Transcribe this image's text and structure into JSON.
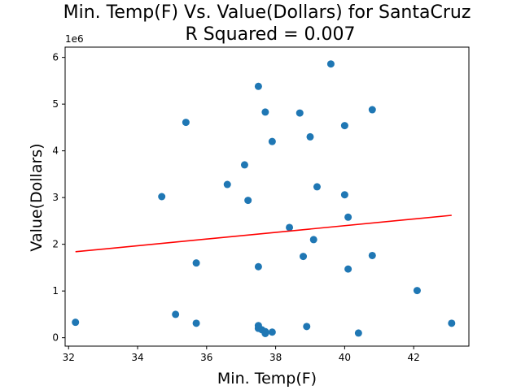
{
  "chart_data": {
    "type": "scatter",
    "title_line1": "Min. Temp(F) Vs. Value(Dollars) for SantaCruz",
    "title_line2": "R Squared =  0.007",
    "xlabel": "Min. Temp(F)",
    "ylabel": "Value(Dollars)",
    "y_offset_label": "1e6",
    "xlim": [
      31.9,
      43.6
    ],
    "ylim": [
      -0.18,
      6.22
    ],
    "x_ticks": [
      32,
      34,
      36,
      38,
      40,
      42
    ],
    "y_ticks": [
      0,
      1,
      2,
      3,
      4,
      5,
      6
    ],
    "colors": {
      "points": "#1f77b4",
      "trend": "#ff0000",
      "axes": "#000000"
    },
    "points": [
      {
        "x": 32.2,
        "y": 0.33
      },
      {
        "x": 34.7,
        "y": 3.02
      },
      {
        "x": 35.1,
        "y": 0.5
      },
      {
        "x": 35.4,
        "y": 4.61
      },
      {
        "x": 35.7,
        "y": 1.6
      },
      {
        "x": 35.7,
        "y": 0.31
      },
      {
        "x": 36.6,
        "y": 3.28
      },
      {
        "x": 37.1,
        "y": 3.7
      },
      {
        "x": 37.2,
        "y": 2.94
      },
      {
        "x": 37.5,
        "y": 5.38
      },
      {
        "x": 37.5,
        "y": 1.52
      },
      {
        "x": 37.5,
        "y": 0.26
      },
      {
        "x": 37.5,
        "y": 0.2
      },
      {
        "x": 37.6,
        "y": 0.17
      },
      {
        "x": 37.7,
        "y": 4.83
      },
      {
        "x": 37.7,
        "y": 0.13
      },
      {
        "x": 37.7,
        "y": 0.09
      },
      {
        "x": 37.9,
        "y": 4.2
      },
      {
        "x": 37.9,
        "y": 0.12
      },
      {
        "x": 38.4,
        "y": 2.36
      },
      {
        "x": 38.7,
        "y": 4.81
      },
      {
        "x": 38.8,
        "y": 1.74
      },
      {
        "x": 38.9,
        "y": 0.24
      },
      {
        "x": 39.0,
        "y": 4.3
      },
      {
        "x": 39.1,
        "y": 2.1
      },
      {
        "x": 39.2,
        "y": 3.23
      },
      {
        "x": 39.6,
        "y": 5.86
      },
      {
        "x": 40.0,
        "y": 4.54
      },
      {
        "x": 40.0,
        "y": 3.06
      },
      {
        "x": 40.1,
        "y": 2.58
      },
      {
        "x": 40.1,
        "y": 1.47
      },
      {
        "x": 40.4,
        "y": 0.1
      },
      {
        "x": 40.8,
        "y": 4.88
      },
      {
        "x": 40.8,
        "y": 1.76
      },
      {
        "x": 42.1,
        "y": 1.01
      },
      {
        "x": 43.1,
        "y": 0.31
      }
    ],
    "trendline": [
      {
        "x": 32.2,
        "y": 1.84
      },
      {
        "x": 43.1,
        "y": 2.62
      }
    ]
  }
}
